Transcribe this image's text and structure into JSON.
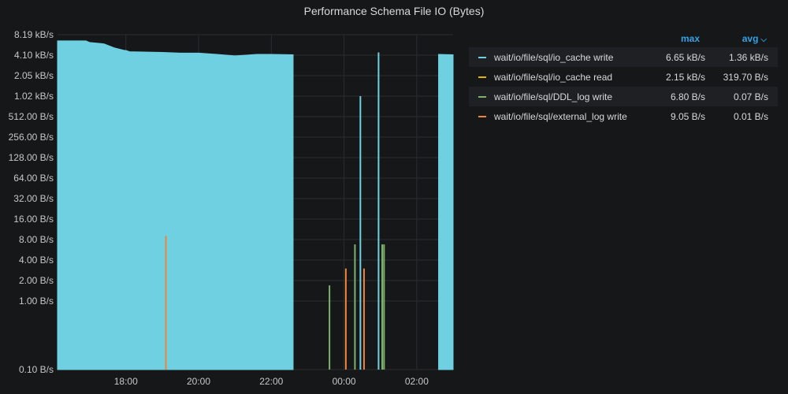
{
  "panel": {
    "title": "Performance Schema File IO (Bytes)"
  },
  "legend_header": {
    "max_label": "max",
    "avg_label": "avg",
    "sort_icon": "chevron-down-icon"
  },
  "chart_data": {
    "type": "area",
    "title": "Performance Schema File IO (Bytes)",
    "yscale": "log2",
    "y_ticks": [
      "0.10 B/s",
      "1.00 B/s",
      "2.00 B/s",
      "4.00 B/s",
      "8.00 B/s",
      "16.00 B/s",
      "32.00 B/s",
      "64.00 B/s",
      "128.00 B/s",
      "256.00 B/s",
      "512.00 B/s",
      "1.02 kB/s",
      "2.05 kB/s",
      "4.10 kB/s",
      "8.19 kB/s"
    ],
    "y_tick_values": [
      0.1,
      1,
      2,
      4,
      8,
      16,
      32,
      64,
      128,
      256,
      512,
      1024,
      2048,
      4096,
      8192
    ],
    "x_ticks": [
      "18:00",
      "20:00",
      "22:00",
      "00:00",
      "02:00"
    ],
    "x_tick_hours": [
      18,
      20,
      22,
      24,
      26
    ],
    "xlim": [
      16.12,
      27.0
    ],
    "ylim": [
      0.1,
      8192
    ],
    "grid": true,
    "legend_position": "right",
    "series": [
      {
        "name": "wait/io/file/sql/io_cache write",
        "color": "#6ed0e0",
        "max": "6.65 kB/s",
        "avg": "1.36 kB/s",
        "fill_points": [
          [
            16.12,
            6650
          ],
          [
            16.9,
            6650
          ],
          [
            17.0,
            6300
          ],
          [
            17.4,
            6000
          ],
          [
            17.7,
            5200
          ],
          [
            17.97,
            4800
          ],
          [
            18.0,
            4800
          ],
          [
            18.1,
            4600
          ],
          [
            19.0,
            4500
          ],
          [
            19.5,
            4400
          ],
          [
            20.0,
            4400
          ],
          [
            20.5,
            4200
          ],
          [
            21.0,
            4000
          ],
          [
            21.3,
            4100
          ],
          [
            21.6,
            4200
          ],
          [
            22.0,
            4200
          ],
          [
            22.6,
            4150
          ]
        ],
        "spikes": [
          [
            18.05,
            200
          ],
          [
            18.2,
            350
          ],
          [
            18.95,
            180
          ],
          [
            19.0,
            1400
          ],
          [
            19.5,
            600
          ],
          [
            19.55,
            700
          ],
          [
            19.95,
            620
          ],
          [
            24.45,
            1024
          ],
          [
            24.95,
            4500
          ]
        ],
        "tail_points": [
          [
            26.6,
            4200
          ],
          [
            27.0,
            4150
          ]
        ]
      },
      {
        "name": "wait/io/file/sql/io_cache read",
        "color": "#e0b400",
        "max": "2.15 kB/s",
        "avg": "319.70 B/s"
      },
      {
        "name": "wait/io/file/sql/DDL_log write",
        "color": "#7eb26d",
        "max": "6.80 B/s",
        "avg": "0.07 B/s",
        "spikes": [
          [
            23.6,
            1.7
          ],
          [
            24.3,
            6.8
          ],
          [
            25.05,
            6.8
          ],
          [
            25.1,
            6.8
          ]
        ]
      },
      {
        "name": "wait/io/file/sql/external_log write",
        "color": "#ef843c",
        "max": "9.05 B/s",
        "avg": "0.01 B/s",
        "spikes": [
          [
            19.1,
            9.05
          ],
          [
            24.05,
            3.0
          ],
          [
            24.55,
            3.0
          ]
        ]
      }
    ]
  }
}
